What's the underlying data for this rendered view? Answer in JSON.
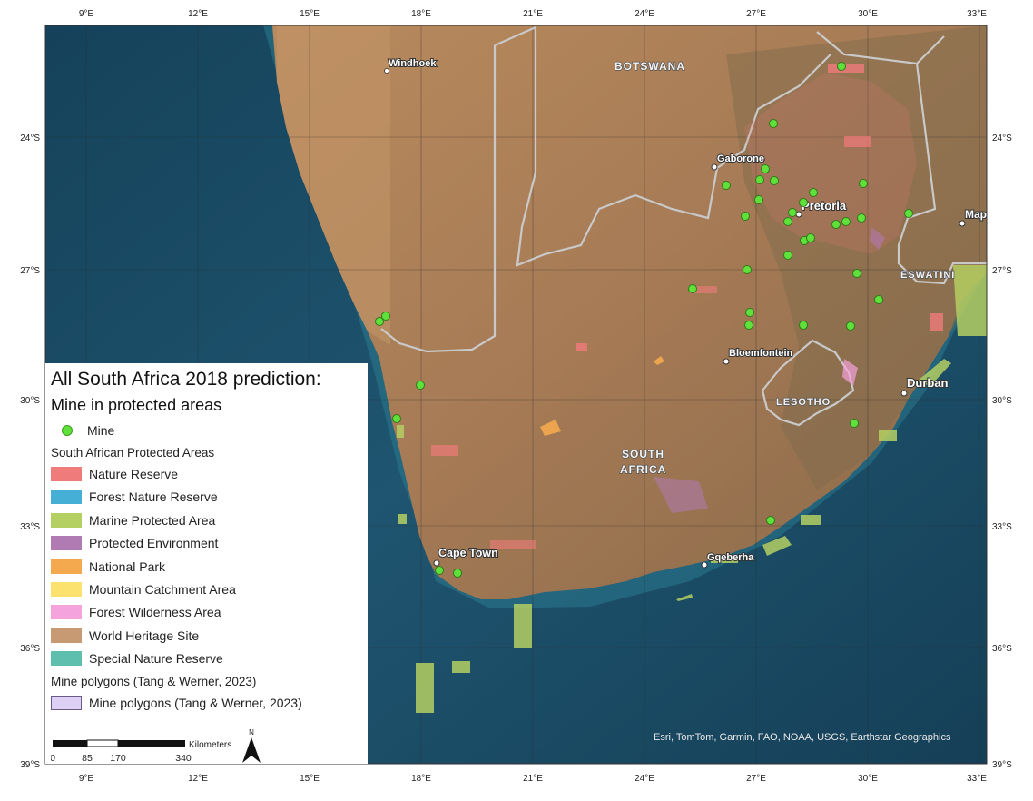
{
  "map": {
    "title": "All South Africa 2018 prediction:",
    "subtitle": "Mine in protected areas",
    "attribution": "Esri, TomTom, Garmin, FAO, NOAA, USGS, Earthstar Geographics",
    "x_ticks": [
      "9°E",
      "12°E",
      "15°E",
      "18°E",
      "21°E",
      "24°E",
      "27°E",
      "30°E",
      "33°E"
    ],
    "y_ticks": [
      "24°S",
      "27°S",
      "30°S",
      "33°S",
      "36°S",
      "39°S"
    ],
    "places": [
      "Windhoek",
      "Gaborone",
      "Pretoria",
      "Bloemfontein",
      "Durban",
      "Cape Town",
      "Gqeberha",
      "Map"
    ],
    "countries": [
      "BOTSWANA",
      "ESWATINI",
      "LESOTHO",
      "SOUTH",
      "AFRICA"
    ],
    "colors": {
      "ocean": "#1f4f68",
      "land": "#a77e57",
      "mine": "#5fe03a"
    }
  },
  "legend": {
    "mine_label": "Mine",
    "protected_header": "South African Protected Areas",
    "protected_items": [
      {
        "label": "Nature Reserve",
        "color": "#ef7b7b"
      },
      {
        "label": "Forest Nature Reserve",
        "color": "#45afd6"
      },
      {
        "label": "Marine Protected Area",
        "color": "#b4cf62"
      },
      {
        "label": "Protected Environment",
        "color": "#b07ab3"
      },
      {
        "label": "National Park",
        "color": "#f5a94e"
      },
      {
        "label": "Mountain Catchment Area",
        "color": "#fbe26e"
      },
      {
        "label": "Forest Wilderness Area",
        "color": "#f5a3dc"
      },
      {
        "label": "World Heritage Site",
        "color": "#c79a73"
      },
      {
        "label": "Special Nature Reserve",
        "color": "#5fbfae"
      }
    ],
    "mine_polygons_header": "Mine polygons (Tang & Werner, 2023)",
    "mine_polygons_label": "Mine polygons (Tang & Werner, 2023)",
    "mine_polygons_color": "#dcd0f5"
  },
  "scale": {
    "unit": "Kilometers",
    "labels": [
      "0",
      "85",
      "170",
      "340"
    ],
    "north": "N"
  }
}
